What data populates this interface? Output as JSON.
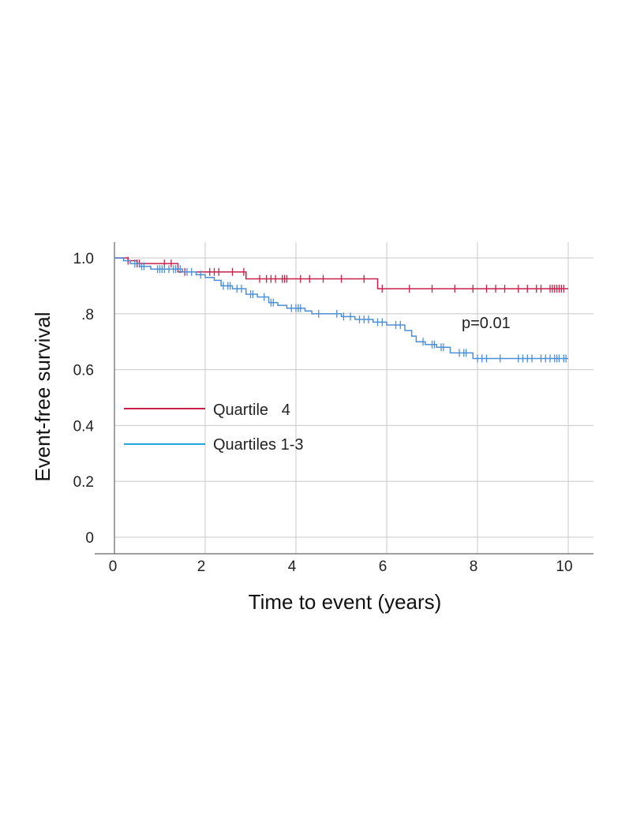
{
  "chart_data": {
    "type": "line",
    "subtype": "kaplan-meier",
    "title": "",
    "xlabel": "Time to event (years)",
    "ylabel": "Event-free survival",
    "xlim": [
      0,
      10.5
    ],
    "ylim": [
      0,
      1.0
    ],
    "x_ticks": [
      0,
      2,
      4,
      6,
      8,
      10
    ],
    "x_tick_labels": [
      "0",
      "2",
      "4",
      "6",
      "8",
      "10"
    ],
    "y_ticks": [
      0,
      0.2,
      0.4,
      0.6,
      0.8,
      1.0
    ],
    "y_tick_labels": [
      "0",
      "0.2",
      "0.4",
      "0.6",
      ".8",
      "1.0"
    ],
    "grid": true,
    "legend_placement": "center-left",
    "annotation": "p=0.01",
    "series": [
      {
        "name": "Quartile   4",
        "color": "#c8204a",
        "steps": [
          [
            0,
            1.0
          ],
          [
            0.3,
            0.99
          ],
          [
            0.5,
            0.98
          ],
          [
            1.4,
            0.95
          ],
          [
            2.9,
            0.925
          ],
          [
            5.8,
            0.89
          ],
          [
            10.0,
            0.89
          ]
        ],
        "censored": [
          0.3,
          0.5,
          0.55,
          1.1,
          1.25,
          1.55,
          2.1,
          2.2,
          2.3,
          2.6,
          2.85,
          3.2,
          3.35,
          3.45,
          3.55,
          3.7,
          3.75,
          3.8,
          4.1,
          4.3,
          4.6,
          5.0,
          5.5,
          5.9,
          6.5,
          7.0,
          7.5,
          7.9,
          8.2,
          8.4,
          8.6,
          8.9,
          9.1,
          9.3,
          9.4,
          9.6,
          9.65,
          9.7,
          9.75,
          9.8,
          9.85,
          9.9
        ]
      },
      {
        "name": "Quartiles 1-3",
        "color": "#4a8fd8",
        "steps": [
          [
            0,
            1.0
          ],
          [
            0.2,
            0.99
          ],
          [
            0.35,
            0.98
          ],
          [
            0.55,
            0.97
          ],
          [
            0.8,
            0.96
          ],
          [
            1.5,
            0.95
          ],
          [
            1.8,
            0.94
          ],
          [
            2.0,
            0.93
          ],
          [
            2.2,
            0.92
          ],
          [
            2.35,
            0.9
          ],
          [
            2.6,
            0.89
          ],
          [
            2.9,
            0.87
          ],
          [
            3.15,
            0.86
          ],
          [
            3.4,
            0.84
          ],
          [
            3.6,
            0.83
          ],
          [
            3.8,
            0.82
          ],
          [
            4.2,
            0.81
          ],
          [
            4.35,
            0.8
          ],
          [
            5.0,
            0.79
          ],
          [
            5.3,
            0.78
          ],
          [
            5.7,
            0.77
          ],
          [
            6.0,
            0.76
          ],
          [
            6.4,
            0.74
          ],
          [
            6.55,
            0.72
          ],
          [
            6.65,
            0.7
          ],
          [
            6.85,
            0.69
          ],
          [
            7.1,
            0.68
          ],
          [
            7.4,
            0.66
          ],
          [
            7.9,
            0.64
          ],
          [
            10.0,
            0.64
          ]
        ],
        "censored": [
          0.45,
          0.6,
          0.65,
          0.95,
          1.0,
          1.05,
          1.1,
          1.2,
          1.3,
          1.35,
          1.45,
          1.6,
          1.7,
          1.9,
          2.4,
          2.5,
          2.55,
          2.7,
          2.8,
          3.0,
          3.05,
          3.3,
          3.45,
          3.5,
          3.9,
          4.0,
          4.05,
          4.1,
          4.5,
          4.9,
          5.05,
          5.2,
          5.4,
          5.5,
          5.6,
          5.8,
          5.9,
          6.2,
          6.3,
          6.8,
          7.0,
          7.05,
          7.2,
          7.25,
          7.6,
          7.7,
          7.75,
          8.0,
          8.1,
          8.2,
          8.5,
          8.9,
          9.0,
          9.1,
          9.2,
          9.4,
          9.5,
          9.6,
          9.7,
          9.75,
          9.8,
          9.9,
          9.95
        ]
      }
    ]
  }
}
